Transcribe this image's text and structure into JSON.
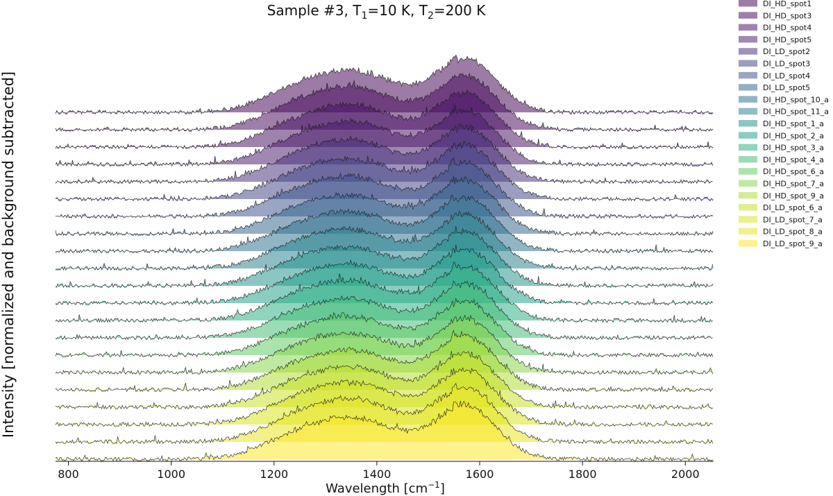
{
  "chart_data": {
    "type": "area",
    "style": "stacked ridgeline of Raman spectra, each filled area offset vertically, noisy black outline",
    "title": {
      "prefix": "Sample #3, T",
      "sub1": "1",
      "mid": "=10 K, T",
      "sub2": "2",
      "suffix": "=200 K"
    },
    "xlabel": {
      "prefix": "Wavelength [cm",
      "sup": "−1",
      "suffix": "]"
    },
    "ylabel": "Intensity [normalized and background subtracted]",
    "xlim": [
      775,
      2055
    ],
    "xticks": [
      800,
      1000,
      1200,
      1400,
      1600,
      1800,
      2000
    ],
    "grid": false,
    "legend_position": "right, outside plot",
    "series": [
      {
        "name": "DI_HD_spot1",
        "color": "#440154",
        "peaks": {
          "d_band_1350": 0.92,
          "g_band_1570": 1.0
        }
      },
      {
        "name": "DI_HD_spot3",
        "color": "#46085c",
        "peaks": {
          "d_band_1350": 0.95,
          "g_band_1570": 1.0
        }
      },
      {
        "name": "DI_HD_spot4",
        "color": "#471063",
        "peaks": {
          "d_band_1350": 0.93,
          "g_band_1570": 1.0
        }
      },
      {
        "name": "DI_HD_spot5",
        "color": "#481a6c",
        "peaks": {
          "d_band_1350": 0.95,
          "g_band_1570": 1.0
        }
      },
      {
        "name": "DI_LD_spot2",
        "color": "#472f7d",
        "peaks": {
          "d_band_1350": 0.92,
          "g_band_1570": 1.0
        }
      },
      {
        "name": "DI_LD_spot3",
        "color": "#414487",
        "peaks": {
          "d_band_1350": 0.88,
          "g_band_1570": 1.0
        }
      },
      {
        "name": "DI_LD_spot4",
        "color": "#3b528b",
        "peaks": {
          "d_band_1350": 0.88,
          "g_band_1570": 1.0
        }
      },
      {
        "name": "DI_LD_spot5",
        "color": "#33638d",
        "peaks": {
          "d_band_1350": 0.85,
          "g_band_1570": 1.0
        }
      },
      {
        "name": "DI_HD_spot_10_a",
        "color": "#2c728e",
        "peaks": {
          "d_band_1350": 0.87,
          "g_band_1570": 1.0
        }
      },
      {
        "name": "DI_HD_spot_11_a",
        "color": "#26828e",
        "peaks": {
          "d_band_1350": 0.86,
          "g_band_1570": 1.0
        }
      },
      {
        "name": "DI_HD_spot_1_a",
        "color": "#21918c",
        "peaks": {
          "d_band_1350": 0.85,
          "g_band_1570": 1.0
        }
      },
      {
        "name": "DI_HD_spot_2_a",
        "color": "#1fa088",
        "peaks": {
          "d_band_1350": 0.86,
          "g_band_1570": 1.0
        }
      },
      {
        "name": "DI_HD_spot_3_a",
        "color": "#28ae80",
        "peaks": {
          "d_band_1350": 0.87,
          "g_band_1570": 1.0
        }
      },
      {
        "name": "DI_HD_spot_4_a",
        "color": "#3fbc73",
        "peaks": {
          "d_band_1350": 0.86,
          "g_band_1570": 1.0
        }
      },
      {
        "name": "DI_HD_spot_6_a",
        "color": "#5ec962",
        "peaks": {
          "d_band_1350": 0.85,
          "g_band_1570": 1.0
        }
      },
      {
        "name": "DI_HD_spot_7_a",
        "color": "#84d44b",
        "peaks": {
          "d_band_1350": 0.86,
          "g_band_1570": 1.0
        }
      },
      {
        "name": "DI_HD_spot_9_a",
        "color": "#addc30",
        "peaks": {
          "d_band_1350": 0.87,
          "g_band_1570": 1.0
        }
      },
      {
        "name": "DI_LD_spot_6_a",
        "color": "#c8e020",
        "peaks": {
          "d_band_1350": 0.88,
          "g_band_1570": 1.0
        }
      },
      {
        "name": "DI_LD_spot_7_a",
        "color": "#d8e219",
        "peaks": {
          "d_band_1350": 0.93,
          "g_band_1570": 1.0
        }
      },
      {
        "name": "DI_LD_spot_8_a",
        "color": "#e8e419",
        "peaks": {
          "d_band_1350": 0.95,
          "g_band_1570": 1.0
        }
      },
      {
        "name": "DI_LD_spot_9_a",
        "color": "#fde725",
        "peaks": {
          "d_band_1350": 0.92,
          "g_band_1570": 1.0
        }
      }
    ]
  }
}
